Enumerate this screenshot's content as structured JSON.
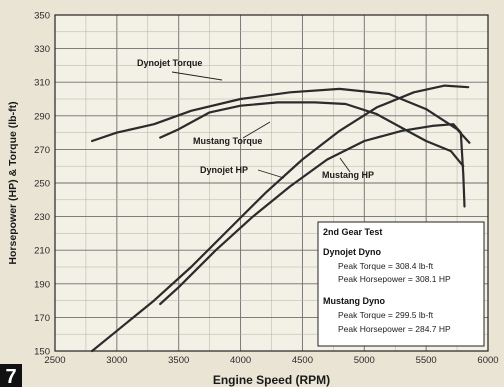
{
  "figure_number": "7",
  "chart_data": {
    "type": "line",
    "xlabel": "Engine Speed (RPM)",
    "ylabel": "Horsepower (HP) & Torque (lb-ft)",
    "xlim": [
      2500,
      6000
    ],
    "ylim": [
      150,
      350
    ],
    "x_ticks": [
      2500,
      3000,
      3500,
      4000,
      4500,
      5000,
      5500,
      6000
    ],
    "y_ticks": [
      150,
      170,
      190,
      210,
      230,
      250,
      270,
      290,
      310,
      330,
      350
    ],
    "grid": true,
    "series": [
      {
        "name": "Dynojet Torque",
        "x": [
          2800,
          3000,
          3300,
          3600,
          4000,
          4400,
          4800,
          5200,
          5500,
          5750,
          5850
        ],
        "y": [
          275,
          280,
          285,
          293,
          300,
          304,
          306,
          303,
          294,
          282,
          274
        ]
      },
      {
        "name": "Mustang Torque",
        "x": [
          3350,
          3500,
          3750,
          4000,
          4300,
          4600,
          4850,
          5100,
          5300,
          5500,
          5700,
          5800
        ],
        "y": [
          277,
          282,
          292,
          296,
          298,
          298,
          297,
          291,
          283,
          275,
          269,
          260
        ]
      },
      {
        "name": "Dynojet HP",
        "x": [
          2800,
          3000,
          3300,
          3600,
          3900,
          4200,
          4500,
          4800,
          5100,
          5400,
          5650,
          5840
        ],
        "y": [
          150,
          162,
          180,
          200,
          222,
          244,
          264,
          281,
          295,
          304,
          308,
          307
        ]
      },
      {
        "name": "Mustang HP",
        "x": [
          3350,
          3500,
          3800,
          4100,
          4400,
          4700,
          5000,
          5300,
          5550,
          5720,
          5780,
          5800,
          5810
        ],
        "y": [
          178,
          188,
          210,
          230,
          248,
          264,
          275,
          281,
          284,
          285,
          280,
          255,
          236
        ]
      }
    ],
    "annotations": [
      {
        "text": "Dynojet Torque",
        "series": "Dynojet Torque"
      },
      {
        "text": "Mustang Torque",
        "series": "Mustang Torque"
      },
      {
        "text": "Dynojet HP",
        "series": "Dynojet HP"
      },
      {
        "text": "Mustang HP",
        "series": "Mustang HP"
      }
    ],
    "legend_box": {
      "title": "2nd Gear Test",
      "groups": [
        {
          "heading": "Dynojet Dyno",
          "lines": [
            "Peak Torque = 308.4 lb-ft",
            "Peak Horsepower = 308.1 HP"
          ]
        },
        {
          "heading": "Mustang Dyno",
          "lines": [
            "Peak Torque = 299.5 lb-ft",
            "Peak Horsepower = 284.7 HP"
          ]
        }
      ]
    }
  }
}
